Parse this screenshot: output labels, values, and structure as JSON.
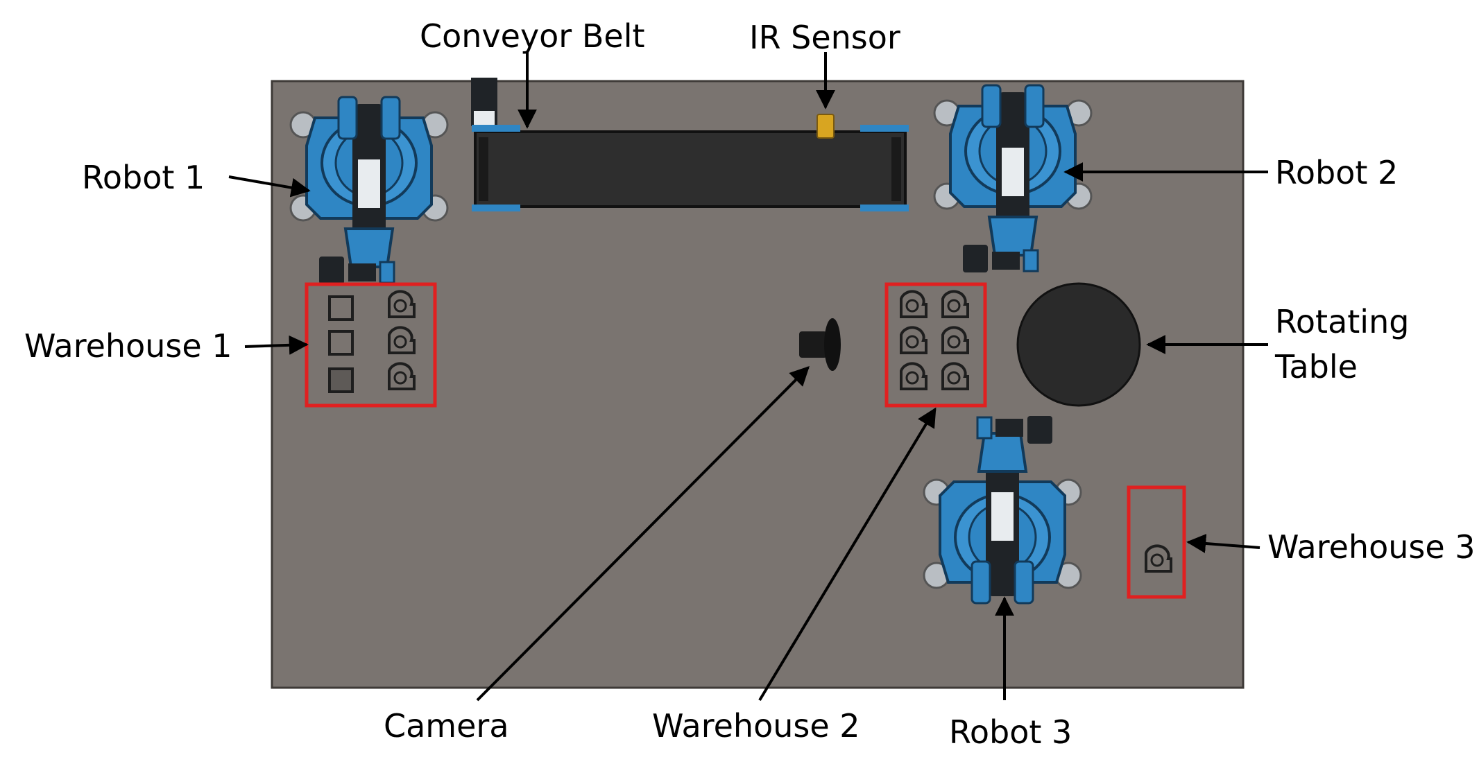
{
  "labels": {
    "conveyor_belt": "Conveyor Belt",
    "ir_sensor": "IR Sensor",
    "robot_1": "Robot 1",
    "robot_2": "Robot 2",
    "robot_3": "Robot 3",
    "warehouse_1": "Warehouse 1",
    "warehouse_2": "Warehouse 2",
    "warehouse_3": "Warehouse 3",
    "rotating_table_line1": "Rotating",
    "rotating_table_line2": "Table",
    "camera": "Camera"
  },
  "colors": {
    "board": "#7a7470",
    "board_border": "#3e3a37",
    "highlight_box": "#e02020",
    "robot_blue": "#2f86c4",
    "robot_dark": "#1f2327",
    "belt": "#2e2e2e",
    "ir_sensor": "#d8a521",
    "table": "#2a2a2a",
    "arrow": "#000000"
  }
}
